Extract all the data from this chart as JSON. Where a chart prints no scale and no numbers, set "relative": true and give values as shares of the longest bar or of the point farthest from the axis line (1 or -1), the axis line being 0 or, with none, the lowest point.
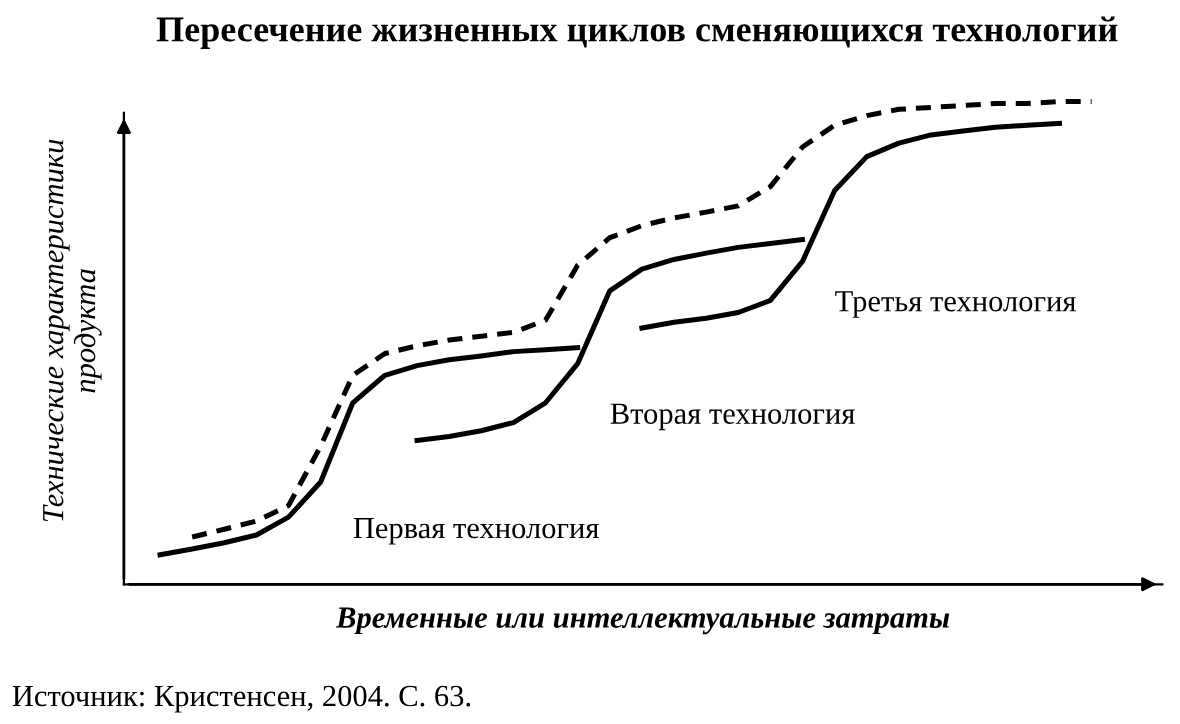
{
  "chart_data": {
    "type": "line",
    "relative": true,
    "title": "Пересечение жизненных циклов сменяющихся технологий",
    "xlabel": "Временные или интеллектуальные затраты",
    "ylabel": "Технические характеристики\nпродукта",
    "annotations": [
      "Источник: Кристенсен, 2004. С. 63."
    ],
    "categories": [
      null,
      null,
      null,
      null,
      null,
      null,
      null,
      null,
      null,
      null,
      null,
      null,
      null,
      null,
      null,
      null,
      null,
      null,
      null,
      null,
      null,
      null,
      null,
      null,
      null,
      null,
      null,
      null,
      null,
      null
    ],
    "legend": false,
    "marker": "none",
    "series": [
      {
        "color": "#000000",
        "line_style": "dashed",
        "values": [
          null,
          0.098,
          0.114,
          0.131,
          0.163,
          0.286,
          0.433,
          0.478,
          0.494,
          0.506,
          0.514,
          0.522,
          0.547,
          0.661,
          0.718,
          0.743,
          0.759,
          0.771,
          0.784,
          0.824,
          0.906,
          0.951,
          0.971,
          0.984,
          0.988,
          0.992,
          0.996,
          0.996,
          1,
          1
        ]
      },
      {
        "name": "Первая технология",
        "color": "#000000",
        "line_style": "solid",
        "values": [
          0.061,
          0.073,
          0.086,
          0.102,
          0.139,
          0.212,
          0.376,
          0.433,
          0.453,
          0.465,
          0.473,
          0.482,
          0.486,
          0.49,
          null,
          null,
          null,
          null,
          null,
          null,
          null,
          null,
          null,
          null,
          null,
          null,
          null,
          null,
          null,
          null
        ]
      },
      {
        "name": "Вторая технология",
        "color": "#000000",
        "line_style": "solid",
        "values": [
          null,
          null,
          null,
          null,
          null,
          null,
          null,
          null,
          0.298,
          0.306,
          0.318,
          0.335,
          0.376,
          0.457,
          0.608,
          0.653,
          0.673,
          0.686,
          0.698,
          0.706,
          0.714,
          null,
          null,
          null,
          null,
          null,
          null,
          null,
          null,
          null
        ]
      },
      {
        "name": "Третья технология",
        "color": "#000000",
        "line_style": "solid",
        "values": [
          null,
          null,
          null,
          null,
          null,
          null,
          null,
          null,
          null,
          null,
          null,
          null,
          null,
          null,
          null,
          0.531,
          0.543,
          0.551,
          0.563,
          0.588,
          0.669,
          0.816,
          0.886,
          0.914,
          0.931,
          0.939,
          0.947,
          0.951,
          0.955,
          null
        ]
      }
    ]
  }
}
